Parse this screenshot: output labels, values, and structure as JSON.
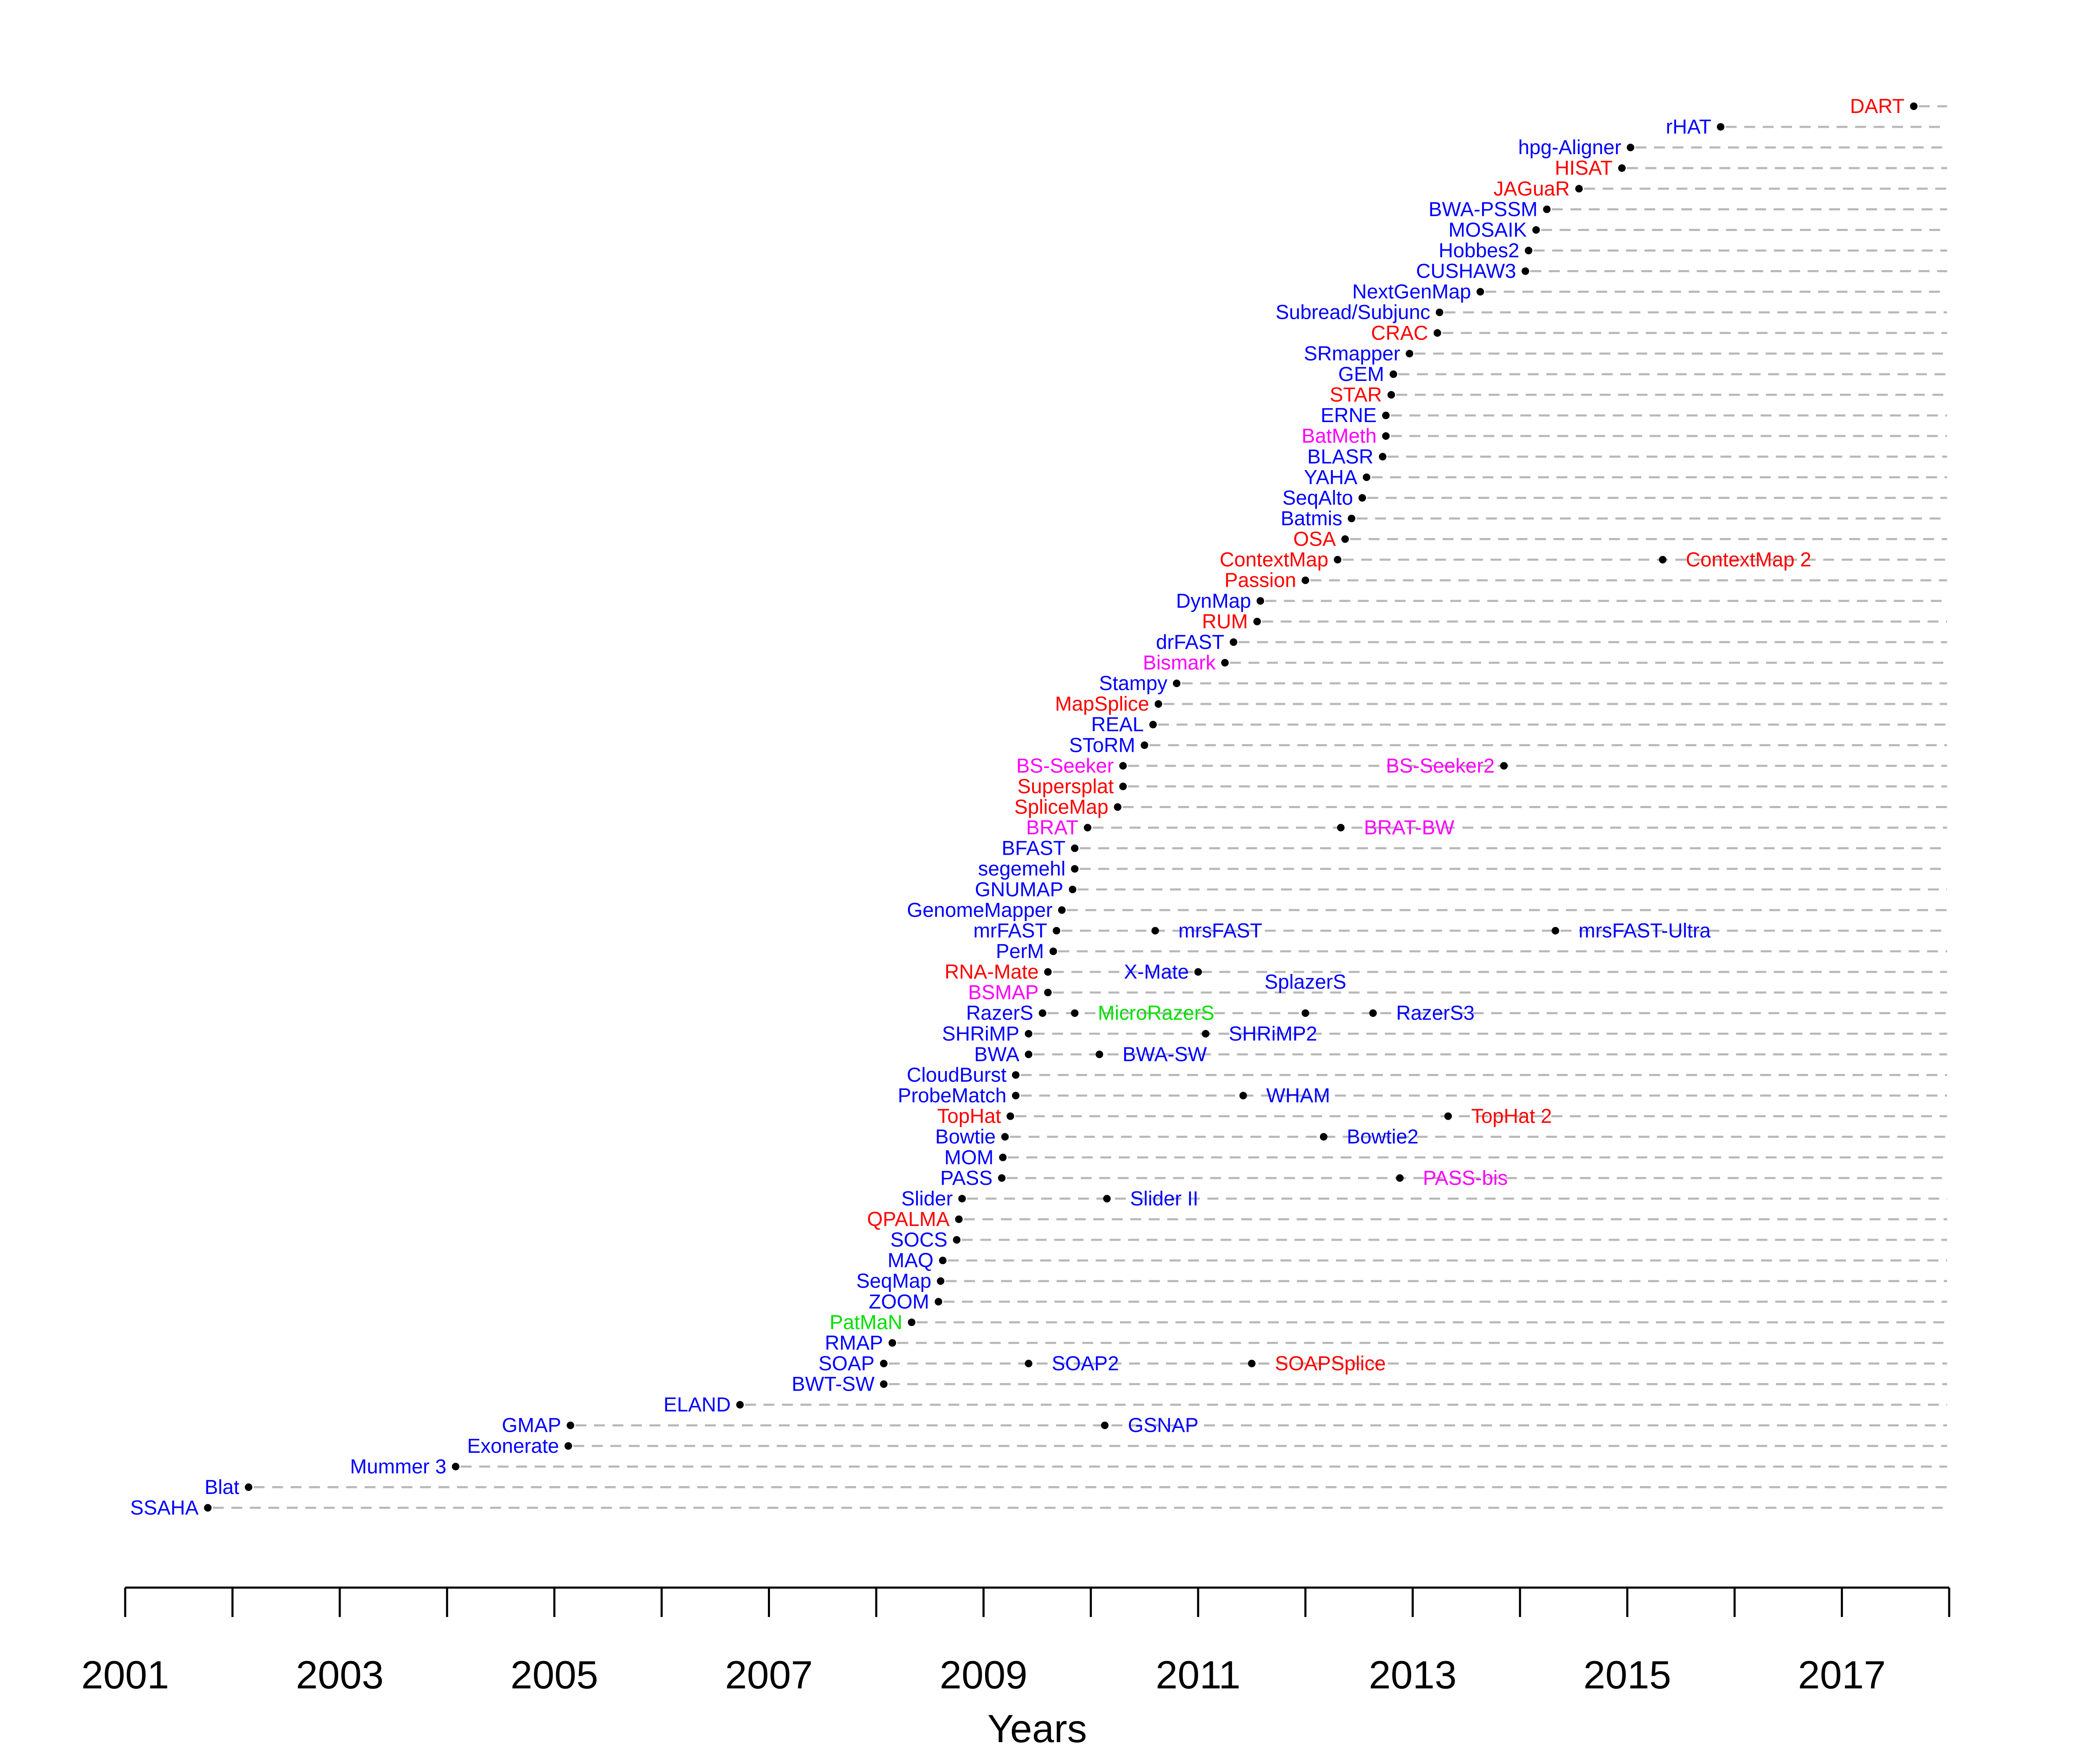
{
  "chart_data": {
    "type": "scatter",
    "title": "",
    "xlabel": "Years",
    "ylabel": "",
    "xlim": [
      2001,
      2018
    ],
    "x_ticks": [
      2001,
      2002,
      2003,
      2004,
      2005,
      2006,
      2007,
      2008,
      2009,
      2010,
      2011,
      2012,
      2013,
      2014,
      2015,
      2016,
      2017,
      2018
    ],
    "x_tick_labels": [
      "2001",
      "",
      "2003",
      "",
      "2005",
      "",
      "2007",
      "",
      "2009",
      "",
      "2011",
      "",
      "2013",
      "",
      "2015",
      "",
      "2017",
      ""
    ],
    "grid": "dashed horizontal line per tool",
    "colors": {
      "blue": "#0000ff",
      "red": "#ff0000",
      "magenta": "#ff00ff",
      "green": "#00e000"
    },
    "rows": [
      {
        "points": [
          {
            "label": "SSAHA",
            "x": 2001.77,
            "color": "blue",
            "side": "left"
          }
        ]
      },
      {
        "points": [
          {
            "label": "Blat",
            "x": 2002.15,
            "color": "blue",
            "side": "left"
          }
        ]
      },
      {
        "points": [
          {
            "label": "Mummer 3",
            "x": 2004.08,
            "color": "blue",
            "side": "left"
          }
        ]
      },
      {
        "points": [
          {
            "label": "Exonerate",
            "x": 2005.13,
            "color": "blue",
            "side": "left"
          }
        ]
      },
      {
        "points": [
          {
            "label": "GMAP",
            "x": 2005.15,
            "color": "blue",
            "side": "left"
          },
          {
            "label": "GSNAP",
            "x": 2010.13,
            "color": "blue",
            "side": "right"
          }
        ]
      },
      {
        "points": [
          {
            "label": "ELAND",
            "x": 2006.73,
            "color": "blue",
            "side": "left"
          }
        ]
      },
      {
        "points": [
          {
            "label": "BWT-SW",
            "x": 2008.07,
            "color": "blue",
            "side": "left"
          }
        ]
      },
      {
        "points": [
          {
            "label": "SOAP",
            "x": 2008.07,
            "color": "blue",
            "side": "left"
          },
          {
            "label": "SOAP2",
            "x": 2009.42,
            "color": "blue",
            "side": "right"
          },
          {
            "label": "SOAPSplice",
            "x": 2011.5,
            "color": "red",
            "side": "right"
          }
        ]
      },
      {
        "points": [
          {
            "label": "RMAP",
            "x": 2008.15,
            "color": "blue",
            "side": "left"
          }
        ]
      },
      {
        "points": [
          {
            "label": "PatMaN",
            "x": 2008.33,
            "color": "green",
            "side": "left"
          }
        ]
      },
      {
        "points": [
          {
            "label": "ZOOM",
            "x": 2008.58,
            "color": "blue",
            "side": "left"
          }
        ]
      },
      {
        "points": [
          {
            "label": "SeqMap",
            "x": 2008.6,
            "color": "blue",
            "side": "left"
          }
        ]
      },
      {
        "points": [
          {
            "label": "MAQ",
            "x": 2008.62,
            "color": "blue",
            "side": "left"
          }
        ]
      },
      {
        "points": [
          {
            "label": "SOCS",
            "x": 2008.75,
            "color": "blue",
            "side": "left"
          }
        ]
      },
      {
        "points": [
          {
            "label": "QPALMA",
            "x": 2008.77,
            "color": "red",
            "side": "left"
          }
        ]
      },
      {
        "points": [
          {
            "label": "Slider",
            "x": 2008.8,
            "color": "blue",
            "side": "left"
          },
          {
            "label": "Slider II",
            "x": 2010.15,
            "color": "blue",
            "side": "right"
          }
        ]
      },
      {
        "points": [
          {
            "label": "PASS",
            "x": 2009.17,
            "color": "blue",
            "side": "left"
          },
          {
            "label": "PASS-bis",
            "x": 2012.88,
            "color": "magenta",
            "side": "right"
          }
        ]
      },
      {
        "points": [
          {
            "label": "MOM",
            "x": 2009.18,
            "color": "blue",
            "side": "left"
          }
        ]
      },
      {
        "points": [
          {
            "label": "Bowtie",
            "x": 2009.2,
            "color": "blue",
            "side": "left"
          },
          {
            "label": "Bowtie2",
            "x": 2012.17,
            "color": "blue",
            "side": "right"
          }
        ]
      },
      {
        "points": [
          {
            "label": "TopHat",
            "x": 2009.25,
            "color": "red",
            "side": "left"
          },
          {
            "label": "TopHat 2",
            "x": 2013.33,
            "color": "red",
            "side": "right"
          }
        ]
      },
      {
        "points": [
          {
            "label": "ProbeMatch",
            "x": 2009.3,
            "color": "blue",
            "side": "left"
          },
          {
            "label": "WHAM",
            "x": 2011.42,
            "color": "blue",
            "side": "right"
          }
        ]
      },
      {
        "points": [
          {
            "label": "CloudBurst",
            "x": 2009.3,
            "color": "blue",
            "side": "left"
          }
        ]
      },
      {
        "points": [
          {
            "label": "BWA",
            "x": 2009.42,
            "color": "blue",
            "side": "left"
          },
          {
            "label": "BWA-SW",
            "x": 2010.08,
            "color": "blue",
            "side": "right"
          }
        ]
      },
      {
        "points": [
          {
            "label": "SHRiMP",
            "x": 2009.42,
            "color": "blue",
            "side": "left"
          },
          {
            "label": "SHRiMP2",
            "x": 2011.07,
            "color": "blue",
            "side": "right"
          }
        ]
      },
      {
        "points": [
          {
            "label": "RazerS",
            "x": 2009.55,
            "color": "blue",
            "side": "left"
          },
          {
            "label": "MicroRazerS",
            "x": 2009.85,
            "color": "green",
            "side": "right"
          },
          {
            "label": "SplazerS",
            "x": 2012.0,
            "color": "blue",
            "side": "above"
          },
          {
            "label": "RazerS3",
            "x": 2012.63,
            "color": "blue",
            "side": "right"
          }
        ]
      },
      {
        "points": [
          {
            "label": "BSMAP",
            "x": 2009.6,
            "color": "magenta",
            "side": "left"
          }
        ]
      },
      {
        "points": [
          {
            "label": "RNA-Mate",
            "x": 2009.6,
            "color": "red",
            "side": "left"
          },
          {
            "label": "X-Mate",
            "x": 2011.0,
            "color": "blue",
            "side": "left"
          }
        ]
      },
      {
        "points": [
          {
            "label": "PerM",
            "x": 2009.65,
            "color": "blue",
            "side": "left"
          }
        ]
      },
      {
        "points": [
          {
            "label": "mrFAST",
            "x": 2009.68,
            "color": "blue",
            "side": "left"
          },
          {
            "label": "mrsFAST",
            "x": 2010.6,
            "color": "blue",
            "side": "right"
          },
          {
            "label": "mrsFAST-Ultra",
            "x": 2014.33,
            "color": "blue",
            "side": "right"
          }
        ]
      },
      {
        "points": [
          {
            "label": "GenomeMapper",
            "x": 2009.73,
            "color": "blue",
            "side": "left"
          }
        ]
      },
      {
        "points": [
          {
            "label": "GNUMAP",
            "x": 2009.83,
            "color": "blue",
            "side": "left"
          }
        ]
      },
      {
        "points": [
          {
            "label": "segemehl",
            "x": 2009.85,
            "color": "blue",
            "side": "left"
          }
        ]
      },
      {
        "points": [
          {
            "label": "BFAST",
            "x": 2009.85,
            "color": "blue",
            "side": "left"
          }
        ]
      },
      {
        "points": [
          {
            "label": "BRAT",
            "x": 2009.97,
            "color": "magenta",
            "side": "left"
          },
          {
            "label": "BRAT-BW",
            "x": 2012.33,
            "color": "magenta",
            "side": "right"
          }
        ]
      },
      {
        "points": [
          {
            "label": "SpliceMap",
            "x": 2010.25,
            "color": "red",
            "side": "left"
          }
        ]
      },
      {
        "points": [
          {
            "label": "Supersplat",
            "x": 2010.3,
            "color": "red",
            "side": "left"
          }
        ]
      },
      {
        "points": [
          {
            "label": "BS-Seeker",
            "x": 2010.3,
            "color": "magenta",
            "side": "left"
          },
          {
            "label": "BS-Seeker2",
            "x": 2013.85,
            "color": "magenta",
            "side": "left"
          }
        ]
      },
      {
        "points": [
          {
            "label": "SToRM",
            "x": 2010.5,
            "color": "blue",
            "side": "left"
          }
        ]
      },
      {
        "points": [
          {
            "label": "REAL",
            "x": 2010.58,
            "color": "blue",
            "side": "left"
          }
        ]
      },
      {
        "points": [
          {
            "label": "MapSplice",
            "x": 2010.63,
            "color": "red",
            "side": "left"
          }
        ]
      },
      {
        "points": [
          {
            "label": "Stampy",
            "x": 2010.8,
            "color": "blue",
            "side": "left"
          }
        ]
      },
      {
        "points": [
          {
            "label": "Bismark",
            "x": 2011.25,
            "color": "magenta",
            "side": "left"
          }
        ]
      },
      {
        "points": [
          {
            "label": "drFAST",
            "x": 2011.33,
            "color": "blue",
            "side": "left"
          }
        ]
      },
      {
        "points": [
          {
            "label": "RUM",
            "x": 2011.55,
            "color": "red",
            "side": "left"
          }
        ]
      },
      {
        "points": [
          {
            "label": "DynMap",
            "x": 2011.58,
            "color": "blue",
            "side": "left"
          }
        ]
      },
      {
        "points": [
          {
            "label": "Passion",
            "x": 2012.0,
            "color": "red",
            "side": "left"
          }
        ]
      },
      {
        "points": [
          {
            "label": "ContextMap",
            "x": 2012.3,
            "color": "red",
            "side": "left"
          },
          {
            "label": "ContextMap 2",
            "x": 2015.33,
            "color": "red",
            "side": "right"
          }
        ]
      },
      {
        "points": [
          {
            "label": "OSA",
            "x": 2012.37,
            "color": "red",
            "side": "left"
          }
        ]
      },
      {
        "points": [
          {
            "label": "Batmis",
            "x": 2012.43,
            "color": "blue",
            "side": "left"
          }
        ]
      },
      {
        "points": [
          {
            "label": "SeqAlto",
            "x": 2012.53,
            "color": "blue",
            "side": "left"
          }
        ]
      },
      {
        "points": [
          {
            "label": "YAHA",
            "x": 2012.57,
            "color": "blue",
            "side": "left"
          }
        ]
      },
      {
        "points": [
          {
            "label": "BLASR",
            "x": 2012.72,
            "color": "blue",
            "side": "left"
          }
        ]
      },
      {
        "points": [
          {
            "label": "BatMeth",
            "x": 2012.75,
            "color": "magenta",
            "side": "left"
          }
        ]
      },
      {
        "points": [
          {
            "label": "ERNE",
            "x": 2012.75,
            "color": "blue",
            "side": "left"
          }
        ]
      },
      {
        "points": [
          {
            "label": "STAR",
            "x": 2012.8,
            "color": "red",
            "side": "left"
          }
        ]
      },
      {
        "points": [
          {
            "label": "GEM",
            "x": 2012.82,
            "color": "blue",
            "side": "left"
          }
        ]
      },
      {
        "points": [
          {
            "label": "SRmapper",
            "x": 2012.97,
            "color": "blue",
            "side": "left"
          }
        ]
      },
      {
        "points": [
          {
            "label": "CRAC",
            "x": 2013.23,
            "color": "red",
            "side": "left"
          }
        ]
      },
      {
        "points": [
          {
            "label": "Subread/Subjunc",
            "x": 2013.25,
            "color": "blue",
            "side": "left"
          }
        ]
      },
      {
        "points": [
          {
            "label": "NextGenMap",
            "x": 2013.63,
            "color": "blue",
            "side": "left"
          }
        ]
      },
      {
        "points": [
          {
            "label": "CUSHAW3",
            "x": 2014.05,
            "color": "blue",
            "side": "left"
          }
        ]
      },
      {
        "points": [
          {
            "label": "Hobbes2",
            "x": 2014.08,
            "color": "blue",
            "side": "left"
          }
        ]
      },
      {
        "points": [
          {
            "label": "MOSAIK",
            "x": 2014.15,
            "color": "blue",
            "side": "left"
          }
        ]
      },
      {
        "points": [
          {
            "label": "BWA-PSSM",
            "x": 2014.25,
            "color": "blue",
            "side": "left"
          }
        ]
      },
      {
        "points": [
          {
            "label": "JAGuaR",
            "x": 2014.55,
            "color": "red",
            "side": "left"
          }
        ]
      },
      {
        "points": [
          {
            "label": "HISAT",
            "x": 2014.95,
            "color": "red",
            "side": "left"
          }
        ]
      },
      {
        "points": [
          {
            "label": "hpg-Aligner",
            "x": 2015.03,
            "color": "blue",
            "side": "left"
          }
        ]
      },
      {
        "points": [
          {
            "label": "rHAT",
            "x": 2015.87,
            "color": "blue",
            "side": "left"
          }
        ]
      },
      {
        "points": [
          {
            "label": "DART",
            "x": 2017.67,
            "color": "red",
            "side": "left"
          }
        ]
      }
    ]
  }
}
